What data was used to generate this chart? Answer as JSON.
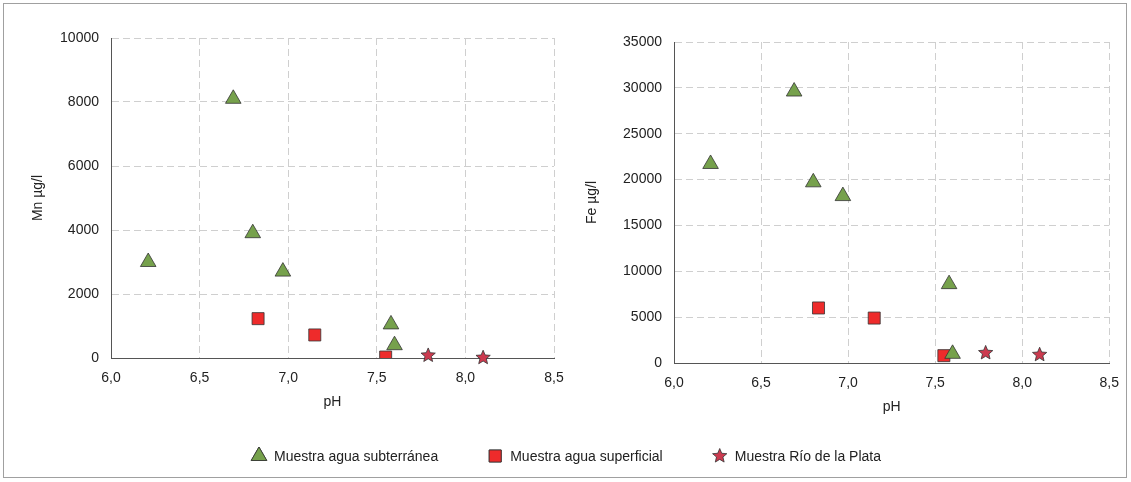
{
  "chart_data": [
    {
      "type": "scatter",
      "xlabel": "pH",
      "ylabel": "Mn µg/l",
      "xlim": [
        6,
        8.5
      ],
      "ylim": [
        0,
        10000
      ],
      "xticks": [
        {
          "value": 6,
          "label": "6,0"
        },
        {
          "value": 6.5,
          "label": "6,5"
        },
        {
          "value": 7,
          "label": "7,0"
        },
        {
          "value": 7.5,
          "label": "7,5"
        },
        {
          "value": 8,
          "label": "8,0"
        },
        {
          "value": 8.5,
          "label": "8,5"
        }
      ],
      "yticks": [
        0,
        2000,
        4000,
        6000,
        8000,
        10000
      ],
      "grid": true,
      "legend": "bottom",
      "series": [
        {
          "name": "Muestra agua subterránea",
          "color": "#76a14c",
          "marker": "triangle",
          "x": [
            6.21,
            6.69,
            6.8,
            6.97,
            7.58,
            7.6
          ],
          "values": [
            3000,
            8100,
            3900,
            2700,
            1050,
            400
          ]
        },
        {
          "name": "Muestra agua superficial",
          "color": "#ee2b2b",
          "marker": "square",
          "x": [
            6.83,
            7.15,
            7.55
          ],
          "values": [
            1230,
            720,
            30
          ]
        },
        {
          "name": "Muestra Río de la Plata",
          "color": "#cc3a4f",
          "marker": "star",
          "x": [
            7.79,
            8.1
          ],
          "values": [
            80,
            10
          ]
        }
      ]
    },
    {
      "type": "scatter",
      "xlabel": "pH",
      "ylabel": "Fe µg/l",
      "xlim": [
        6,
        8.5
      ],
      "ylim": [
        0,
        35000
      ],
      "xticks": [
        {
          "value": 6,
          "label": "6,0"
        },
        {
          "value": 6.5,
          "label": "6,5"
        },
        {
          "value": 7,
          "label": "7,0"
        },
        {
          "value": 7.5,
          "label": "7,5"
        },
        {
          "value": 8,
          "label": "8,0"
        },
        {
          "value": 8.5,
          "label": "8,5"
        }
      ],
      "yticks": [
        0,
        5000,
        10000,
        15000,
        20000,
        25000,
        30000,
        35000
      ],
      "grid": true,
      "series": [
        {
          "color": "#76a14c",
          "marker": "triangle",
          "x": [
            6.21,
            6.69,
            6.8,
            6.97,
            7.58,
            7.6
          ],
          "values": [
            21700,
            29600,
            19700,
            18200,
            8600,
            1000
          ]
        },
        {
          "color": "#ee2b2b",
          "marker": "square",
          "x": [
            6.83,
            7.15,
            7.55
          ],
          "values": [
            6000,
            4900,
            800
          ]
        },
        {
          "color": "#cc3a4f",
          "marker": "star",
          "x": [
            7.79,
            8.1
          ],
          "values": [
            1100,
            900
          ]
        }
      ]
    }
  ]
}
